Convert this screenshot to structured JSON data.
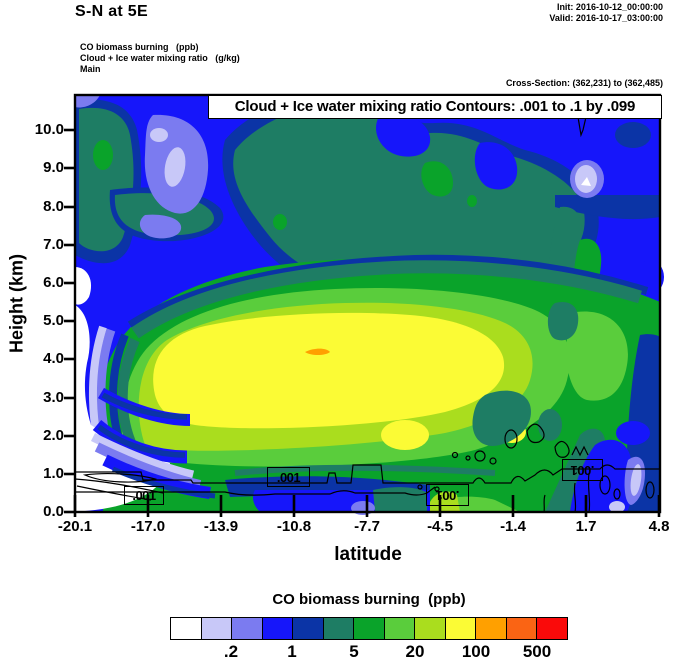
{
  "header": {
    "title": "S-N at 5E",
    "init": "Init: 2016-10-12_00:00:00",
    "valid": "Valid: 2016-10-17_03:00:00"
  },
  "legend": {
    "line1": "CO biomass burning   (ppb)",
    "line2": "Cloud + Ice water mixing ratio   (g/kg)",
    "line3": "Main"
  },
  "cross_section": "Cross-Section: (362,231) to (362,485)",
  "plot": {
    "inner_title": "Cloud + Ice water mixing ratio Contours: .001 to .1 by .099",
    "y_axis": {
      "label": "Height (km)",
      "ticks": [
        "10.0",
        "9.0",
        "8.0",
        "7.0",
        "6.0",
        "5.0",
        "4.0",
        "3.0",
        "2.0",
        "1.0",
        "0.0"
      ]
    },
    "x_axis": {
      "label": "latitude",
      "ticks": [
        "-20.1",
        "-17.0",
        "-13.9",
        "-10.8",
        "-7.7",
        "-4.5",
        "-1.4",
        "1.7",
        "4.8"
      ]
    },
    "contour_labels": [
      ".001",
      ".001",
      ".001",
      ".001"
    ]
  },
  "colorbar": {
    "title": "CO biomass burning  (ppb)",
    "labels": [
      ".2",
      "1",
      "5",
      "20",
      "100",
      "500"
    ],
    "colors": [
      "#ffffff",
      "#c8c8f8",
      "#7b7bf0",
      "#1616fa",
      "#0b34a6",
      "#1e7d64",
      "#0aa32a",
      "#5acd3c",
      "#aadd1e",
      "#fbfb35",
      "#ffa000",
      "#fa6414",
      "#fa0a0a"
    ]
  },
  "palette": {
    "blue": "#1616fa",
    "periwinkle": "#7b7bf0",
    "lavender": "#c8c8f8",
    "dark_blue": "#0b34a6",
    "teal_green": "#1e7d64",
    "green": "#0aa32a",
    "light_green": "#5acd3c",
    "yellow_green": "#aadd1e",
    "yellow": "#fbfb35",
    "orange": "#ffa000",
    "dark_orange": "#fa6414",
    "red": "#fa0a0a"
  },
  "chart_data": {
    "type": "heatmap",
    "title": "S-N at 5E",
    "fill_field": "CO biomass burning (ppb)",
    "overlay_contours": {
      "field": "Cloud + Ice water mixing ratio (g/kg)",
      "levels": [
        0.001,
        0.1
      ],
      "visible_label": ".001",
      "summary": "Cloud + Ice water mixing ratio Contours: .001 to .1 by .099"
    },
    "xlabel": "latitude",
    "ylabel": "Height (km)",
    "xlim": [
      -20.1,
      4.8
    ],
    "ylim": [
      0,
      10.9
    ],
    "x_ticks": [
      -20.1,
      -17.0,
      -13.9,
      -10.8,
      -7.7,
      -4.5,
      -1.4,
      1.7,
      4.8
    ],
    "y_ticks": [
      0,
      1,
      2,
      3,
      4,
      5,
      6,
      7,
      8,
      9,
      10
    ],
    "fill_scale_boundaries_ppb": [
      0.1,
      0.2,
      0.5,
      1,
      2,
      5,
      10,
      20,
      50,
      100,
      200,
      500
    ],
    "labeled_scale_values_ppb": [
      0.2,
      1,
      5,
      20,
      100,
      500
    ],
    "legend_position": "bottom",
    "grid": false,
    "co_ppb_estimated_grid": {
      "note": "approximate values read from fill colors at tick intersections",
      "latitudes": [
        -20.1,
        -17.0,
        -13.9,
        -10.8,
        -7.7,
        -4.5,
        -1.4,
        1.7,
        4.8
      ],
      "heights_km": [
        10,
        9,
        8,
        7,
        6,
        5,
        4,
        3,
        2,
        1,
        0
      ],
      "values": [
        [
          0.7,
          0.7,
          0.7,
          1.5,
          3.5,
          1.5,
          0.7,
          0.7,
          0.7
        ],
        [
          0.35,
          0.7,
          0.35,
          0.7,
          3.5,
          3.5,
          1.5,
          0.7,
          0.7
        ],
        [
          3.5,
          0.7,
          0.35,
          1.5,
          3.5,
          3.5,
          3.5,
          0.15,
          0.7
        ],
        [
          3.5,
          0.7,
          0.7,
          3.5,
          3.5,
          7.5,
          3.5,
          1.5,
          0.7
        ],
        [
          0.05,
          3.5,
          0.7,
          3.5,
          3.5,
          3.5,
          3.5,
          3.5,
          1.5
        ],
        [
          0.7,
          1.5,
          7.5,
          7.5,
          7.5,
          7.5,
          7.5,
          7.5,
          3.5
        ],
        [
          0.05,
          35,
          75,
          75,
          75,
          35,
          15,
          15,
          3.5
        ],
        [
          0.05,
          75,
          75,
          75,
          75,
          35,
          7.5,
          15,
          1.5
        ],
        [
          0.05,
          0.35,
          35,
          75,
          35,
          15,
          7.5,
          3.5,
          0.7
        ],
        [
          0.05,
          1.5,
          7.5,
          7.5,
          7.5,
          15,
          7.5,
          3.5,
          0.7
        ],
        [
          0.05,
          0.15,
          0.7,
          7.5,
          7.5,
          7.5,
          7.5,
          7.5,
          0.35
        ]
      ]
    }
  }
}
